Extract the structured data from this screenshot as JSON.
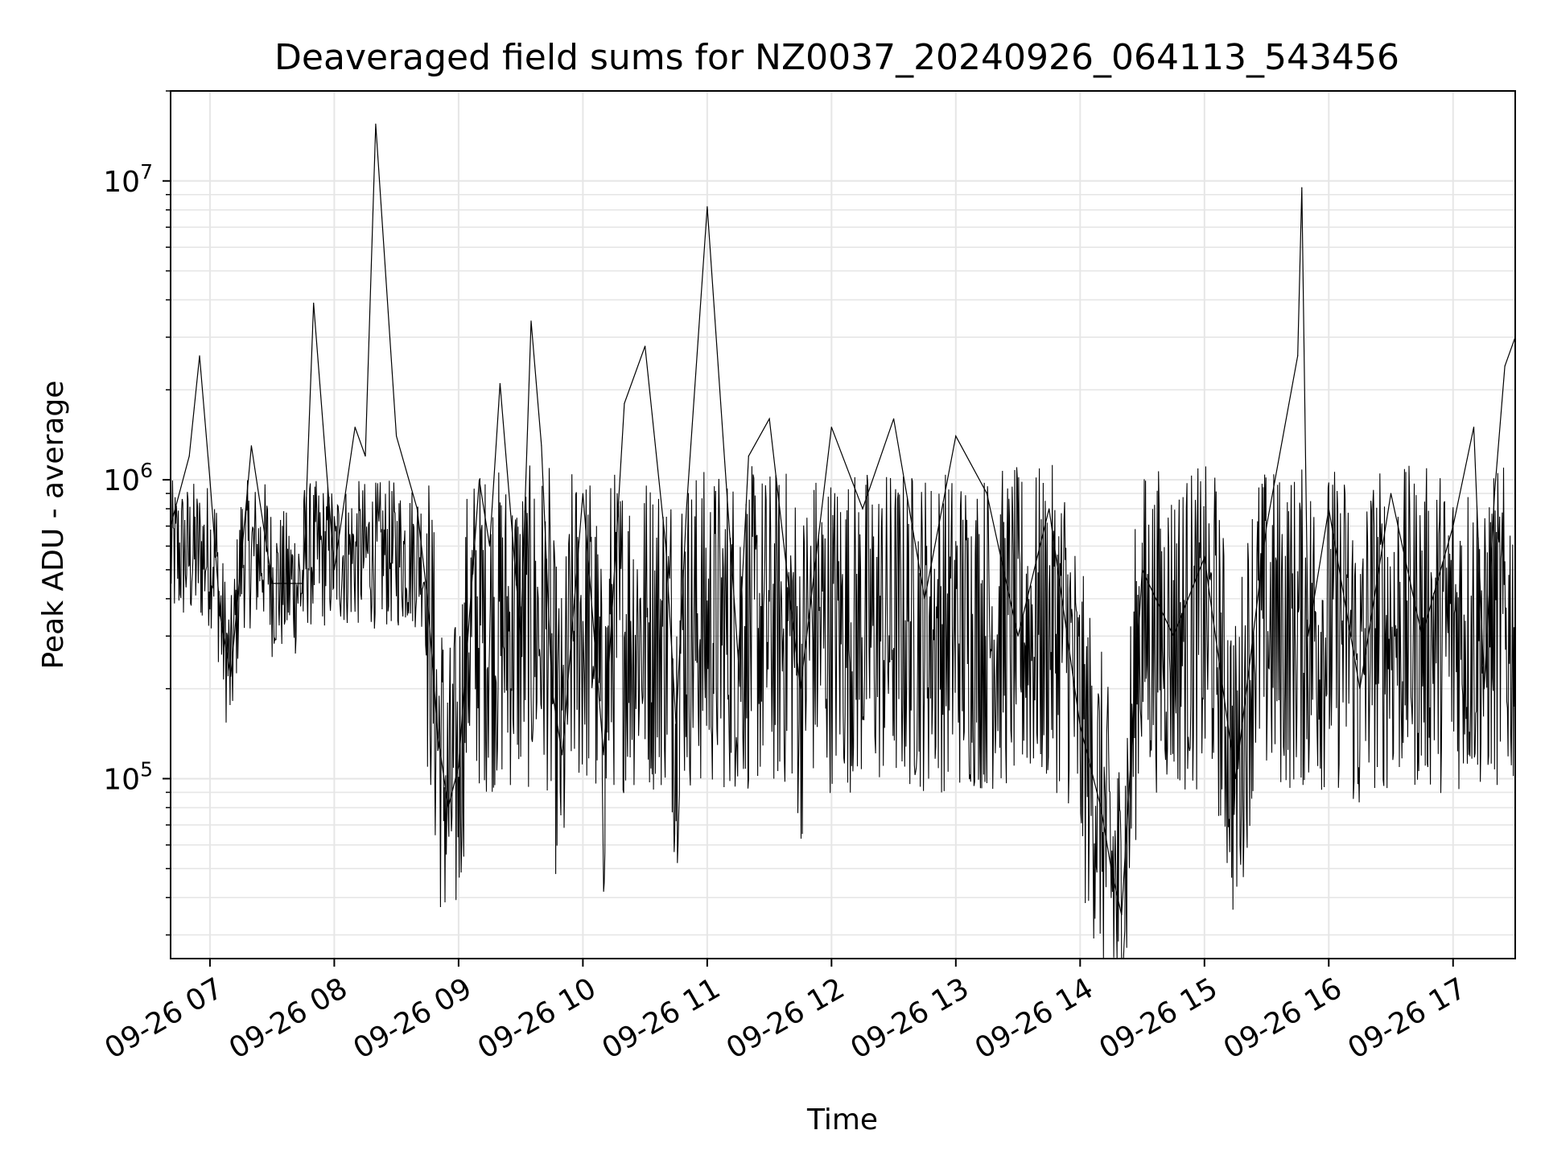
{
  "chart_data": {
    "type": "line",
    "title": "Deaveraged field sums for NZ0037_20240926_064113_543456",
    "xlabel": "Time",
    "ylabel": "Peak ADU - average",
    "y_scale": "log",
    "ylim": [
      25000,
      20000000
    ],
    "xlim": [
      "2024-09-26T06:41",
      "2024-09-26T17:30"
    ],
    "x_ticks": [
      "09-26 07",
      "09-26 08",
      "09-26 09",
      "09-26 10",
      "09-26 11",
      "09-26 12",
      "09-26 13",
      "09-26 14",
      "09-26 15",
      "09-26 16",
      "09-26 17"
    ],
    "y_ticks": [
      {
        "base": "10",
        "exp": "5",
        "value": 100000
      },
      {
        "base": "10",
        "exp": "6",
        "value": 1000000
      },
      {
        "base": "10",
        "exp": "7",
        "value": 10000000
      }
    ],
    "grid": true,
    "line_color": "#000000",
    "grid_color": "#e6e6e6",
    "series": [
      {
        "name": "",
        "x": [
          "06:41",
          "06:50",
          "06:55",
          "07:00",
          "07:05",
          "07:10",
          "07:20",
          "07:30",
          "07:45",
          "07:50",
          "08:00",
          "08:10",
          "08:15",
          "08:20",
          "08:30",
          "08:40",
          "08:45",
          "08:50",
          "08:55",
          "09:00",
          "09:10",
          "09:15",
          "09:20",
          "09:30",
          "09:35",
          "09:40",
          "09:45",
          "09:50",
          "10:00",
          "10:10",
          "10:20",
          "10:30",
          "10:40",
          "10:45",
          "10:50",
          "11:00",
          "11:15",
          "11:20",
          "11:30",
          "11:45",
          "12:00",
          "12:15",
          "12:30",
          "12:45",
          "13:00",
          "13:15",
          "13:30",
          "13:45",
          "14:00",
          "14:10",
          "14:15",
          "14:20",
          "14:30",
          "14:45",
          "15:00",
          "15:15",
          "15:30",
          "15:45",
          "15:47",
          "15:50",
          "16:00",
          "16:15",
          "16:30",
          "16:45",
          "17:00",
          "17:10",
          "17:15",
          "17:20",
          "17:25",
          "17:30"
        ],
        "y": [
          700000,
          1200000,
          2600000,
          1000000,
          350000,
          220000,
          1300000,
          450000,
          450000,
          3900000,
          500000,
          1500000,
          1200000,
          15500000,
          1400000,
          800000,
          400000,
          140000,
          80000,
          110000,
          1000000,
          600000,
          2100000,
          300000,
          3400000,
          1300000,
          200000,
          120000,
          900000,
          120000,
          1800000,
          2800000,
          600000,
          150000,
          800000,
          8200000,
          250000,
          1200000,
          1600000,
          200000,
          1500000,
          800000,
          1600000,
          400000,
          1400000,
          900000,
          300000,
          800000,
          150000,
          80000,
          50000,
          35000,
          500000,
          300000,
          550000,
          100000,
          700000,
          2600000,
          9500000,
          300000,
          800000,
          200000,
          900000,
          300000,
          700000,
          1500000,
          200000,
          900000,
          2400000,
          3000000
        ]
      }
    ]
  }
}
